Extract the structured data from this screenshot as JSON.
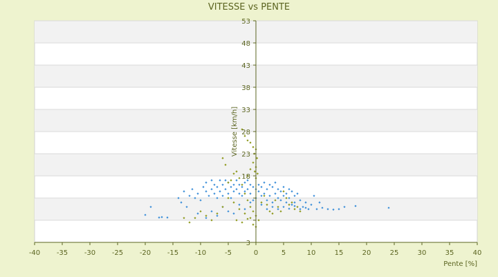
{
  "chart_data": {
    "type": "scatter",
    "title": "VITESSE vs PENTE",
    "xlabel": "Pente [%]",
    "ylabel": "Vitesse [km/h]",
    "xlim": [
      -40,
      40
    ],
    "ylim": [
      3,
      53
    ],
    "x_ticks": [
      -40,
      -35,
      -30,
      -25,
      -20,
      -15,
      -10,
      -5,
      0,
      5,
      10,
      15,
      20,
      25,
      30,
      35,
      40
    ],
    "x_tick_labels": [
      "-40",
      "-35",
      "-30",
      "-25",
      "-20",
      "-15",
      "-10",
      "-5",
      "0",
      "5",
      "10",
      "15",
      "20",
      "25",
      "30",
      "35",
      "40"
    ],
    "y_ticks": [
      3,
      8,
      13,
      18,
      23,
      28,
      33,
      38,
      43,
      48,
      53
    ],
    "y_tick_labels": [
      "3",
      "",
      "",
      "18",
      "23",
      "28",
      "33",
      "38",
      "43",
      "48",
      "53"
    ],
    "grid": true,
    "grid_bands": "alternating",
    "colors": {
      "page_background": "#eef3cf",
      "plot_background": "#ffffff",
      "band": "#f2f2f2",
      "grid": "#d9d9d9",
      "axis": "#5b6420",
      "text": "#5b6420",
      "series_blue": "#3d8fd9",
      "series_olive": "#8f9a1e"
    },
    "series": [
      {
        "color": "#3d8fd9",
        "marker": "diamond",
        "points": [
          [
            -20.0,
            9.2
          ],
          [
            -19.0,
            11.0
          ],
          [
            -17.5,
            8.6
          ],
          [
            -17.0,
            8.7
          ],
          [
            -16.0,
            8.6
          ],
          [
            -14.0,
            13.0
          ],
          [
            -13.5,
            12.0
          ],
          [
            -13.0,
            14.5
          ],
          [
            -12.5,
            11.0
          ],
          [
            -12.0,
            13.5
          ],
          [
            -11.5,
            15.0
          ],
          [
            -11.0,
            13.0
          ],
          [
            -10.5,
            14.0
          ],
          [
            -10.0,
            12.5
          ],
          [
            -9.5,
            15.5
          ],
          [
            -9.0,
            14.5
          ],
          [
            -9.0,
            16.5
          ],
          [
            -8.5,
            13.5
          ],
          [
            -8.0,
            15.0
          ],
          [
            -8.0,
            17.0
          ],
          [
            -7.5,
            14.0
          ],
          [
            -7.5,
            16.0
          ],
          [
            -7.0,
            13.0
          ],
          [
            -7.0,
            15.5
          ],
          [
            -6.5,
            17.0
          ],
          [
            -6.5,
            14.5
          ],
          [
            -6.0,
            16.0
          ],
          [
            -6.0,
            13.5
          ],
          [
            -5.5,
            15.0
          ],
          [
            -5.5,
            17.0
          ],
          [
            -5.0,
            14.0
          ],
          [
            -5.0,
            16.5
          ],
          [
            -4.5,
            15.5
          ],
          [
            -4.5,
            13.0
          ],
          [
            -4.0,
            16.0
          ],
          [
            -4.0,
            14.5
          ],
          [
            -3.5,
            15.0
          ],
          [
            -3.5,
            17.0
          ],
          [
            -3.0,
            14.0
          ],
          [
            -3.0,
            16.0
          ],
          [
            -2.5,
            15.5
          ],
          [
            -2.5,
            13.5
          ],
          [
            -2.0,
            16.5
          ],
          [
            -2.0,
            14.5
          ],
          [
            -1.5,
            15.0
          ],
          [
            -1.5,
            17.0
          ],
          [
            -1.0,
            14.0
          ],
          [
            -1.0,
            16.0
          ],
          [
            -0.5,
            15.5
          ],
          [
            -0.5,
            12.5
          ],
          [
            0.0,
            15.0
          ],
          [
            0.0,
            13.0
          ],
          [
            0.5,
            16.0
          ],
          [
            0.5,
            14.5
          ],
          [
            1.0,
            15.5
          ],
          [
            1.0,
            13.5
          ],
          [
            1.5,
            16.5
          ],
          [
            1.5,
            14.0
          ],
          [
            2.0,
            15.0
          ],
          [
            2.0,
            12.5
          ],
          [
            2.5,
            16.0
          ],
          [
            2.5,
            13.5
          ],
          [
            3.0,
            15.5
          ],
          [
            3.0,
            12.0
          ],
          [
            3.5,
            14.0
          ],
          [
            3.5,
            16.5
          ],
          [
            4.0,
            13.0
          ],
          [
            4.0,
            15.0
          ],
          [
            4.5,
            14.5
          ],
          [
            4.5,
            12.5
          ],
          [
            5.0,
            15.5
          ],
          [
            5.0,
            13.5
          ],
          [
            5.5,
            14.0
          ],
          [
            5.5,
            12.0
          ],
          [
            6.0,
            15.0
          ],
          [
            6.0,
            13.0
          ],
          [
            6.5,
            14.5
          ],
          [
            6.5,
            11.5
          ],
          [
            7.0,
            13.5
          ],
          [
            7.0,
            12.0
          ],
          [
            7.5,
            14.0
          ],
          [
            8.0,
            12.5
          ],
          [
            8.5,
            11.0
          ],
          [
            9.0,
            12.0
          ],
          [
            9.5,
            10.5
          ],
          [
            10.0,
            11.5
          ],
          [
            10.5,
            13.5
          ],
          [
            11.0,
            10.5
          ],
          [
            11.5,
            12.0
          ],
          [
            12.0,
            10.8
          ],
          [
            13.0,
            10.5
          ],
          [
            14.0,
            10.4
          ],
          [
            15.0,
            10.5
          ],
          [
            16.0,
            11.0
          ],
          [
            18.0,
            11.2
          ],
          [
            24.0,
            10.8
          ],
          [
            -10.5,
            9.5
          ],
          [
            -9.0,
            8.5
          ],
          [
            -8.0,
            10.0
          ],
          [
            -7.0,
            9.0
          ],
          [
            -6.0,
            11.0
          ],
          [
            -5.0,
            10.0
          ],
          [
            -4.0,
            9.5
          ],
          [
            -3.0,
            11.5
          ],
          [
            -2.0,
            10.5
          ],
          [
            -1.0,
            12.0
          ],
          [
            1.0,
            11.5
          ],
          [
            2.0,
            10.5
          ],
          [
            3.0,
            11.0
          ],
          [
            4.0,
            10.5
          ],
          [
            5.0,
            11.0
          ],
          [
            6.0,
            10.6
          ],
          [
            7.0,
            11.2
          ],
          [
            8.0,
            10.5
          ],
          [
            9.0,
            10.8
          ]
        ]
      },
      {
        "color": "#8f9a1e",
        "marker": "diamond",
        "points": [
          [
            -2.5,
            28.5
          ],
          [
            -2.0,
            27.0
          ],
          [
            -1.5,
            26.0
          ],
          [
            -1.0,
            25.5
          ],
          [
            -0.5,
            24.5
          ],
          [
            0.0,
            24.0
          ],
          [
            -0.3,
            23.0
          ],
          [
            0.2,
            22.0
          ],
          [
            -0.5,
            21.0
          ],
          [
            0.0,
            20.0
          ],
          [
            -1.0,
            19.5
          ],
          [
            -0.2,
            19.0
          ],
          [
            0.3,
            18.5
          ],
          [
            -1.5,
            18.0
          ],
          [
            0.0,
            17.5
          ],
          [
            -3.5,
            19.0
          ],
          [
            -4.0,
            18.5
          ],
          [
            -4.5,
            17.0
          ],
          [
            -5.0,
            16.5
          ],
          [
            -5.5,
            20.5
          ],
          [
            -6.0,
            22.0
          ],
          [
            -3.0,
            17.5
          ],
          [
            -2.5,
            16.0
          ],
          [
            -2.0,
            14.0
          ],
          [
            -1.5,
            12.5
          ],
          [
            -1.0,
            11.0
          ],
          [
            -0.5,
            10.0
          ],
          [
            0.0,
            9.0
          ],
          [
            0.5,
            8.0
          ],
          [
            -1.0,
            8.5
          ],
          [
            -2.0,
            9.5
          ],
          [
            -3.0,
            10.5
          ],
          [
            -4.0,
            12.0
          ],
          [
            -5.0,
            13.0
          ],
          [
            -6.0,
            11.0
          ],
          [
            -7.0,
            9.5
          ],
          [
            -8.0,
            8.0
          ],
          [
            -9.0,
            9.0
          ],
          [
            -10.0,
            10.0
          ],
          [
            -11.0,
            8.5
          ],
          [
            -12.0,
            7.5
          ],
          [
            -13.0,
            8.5
          ],
          [
            1.0,
            12.0
          ],
          [
            1.5,
            13.5
          ],
          [
            2.0,
            11.5
          ],
          [
            2.5,
            10.0
          ],
          [
            3.0,
            9.5
          ],
          [
            3.5,
            12.5
          ],
          [
            4.0,
            11.0
          ],
          [
            4.5,
            10.0
          ],
          [
            5.0,
            14.5
          ],
          [
            5.5,
            13.0
          ],
          [
            6.0,
            11.5
          ],
          [
            6.5,
            12.0
          ],
          [
            7.0,
            10.5
          ],
          [
            7.5,
            11.0
          ],
          [
            8.0,
            10.0
          ],
          [
            -0.5,
            7.0
          ],
          [
            0.0,
            6.5
          ],
          [
            -2.5,
            7.5
          ],
          [
            -3.5,
            8.0
          ],
          [
            -1.5,
            8.3
          ]
        ]
      }
    ]
  }
}
